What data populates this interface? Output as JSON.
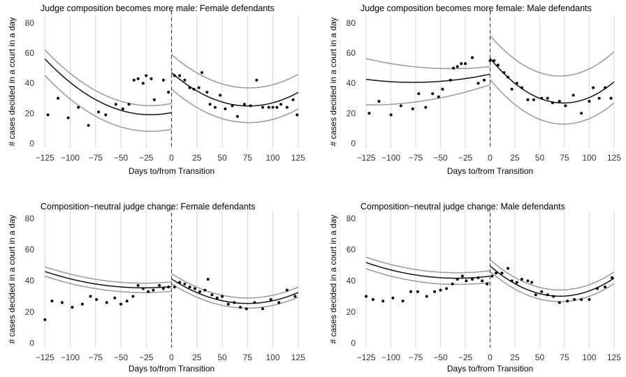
{
  "chart_data": [
    {
      "type": "scatter",
      "title": "Judge composition becomes more male: Female defendants",
      "xlabel": "Days to/from Transition",
      "ylabel": "# cases decided in a court in a day",
      "xlim": [
        -130,
        130
      ],
      "ylim": [
        -3,
        85
      ],
      "xticks": [
        -125,
        -100,
        -75,
        -50,
        -25,
        0,
        25,
        50,
        75,
        100,
        125
      ],
      "yticks": [
        0,
        20,
        40,
        60,
        80
      ],
      "grid": "vertical",
      "cutoff": 0,
      "points": [
        [
          -122,
          19
        ],
        [
          -112,
          30
        ],
        [
          -102,
          17
        ],
        [
          -92,
          24
        ],
        [
          -82,
          12
        ],
        [
          -72,
          21
        ],
        [
          -65,
          19
        ],
        [
          -55,
          26
        ],
        [
          -48,
          23
        ],
        [
          -42,
          26
        ],
        [
          -37,
          42
        ],
        [
          -33,
          43
        ],
        [
          -28,
          40
        ],
        [
          -25,
          45
        ],
        [
          -20,
          43
        ],
        [
          -17,
          29
        ],
        [
          -8,
          42
        ],
        [
          -3,
          34
        ],
        [
          3,
          45
        ],
        [
          8,
          45
        ],
        [
          13,
          42
        ],
        [
          18,
          37
        ],
        [
          22,
          36
        ],
        [
          27,
          37
        ],
        [
          30,
          47
        ],
        [
          35,
          34
        ],
        [
          38,
          26
        ],
        [
          43,
          24
        ],
        [
          48,
          32
        ],
        [
          53,
          23
        ],
        [
          60,
          25
        ],
        [
          65,
          18
        ],
        [
          72,
          26
        ],
        [
          78,
          25
        ],
        [
          84,
          42
        ],
        [
          90,
          24
        ],
        [
          96,
          24
        ],
        [
          100,
          24
        ],
        [
          104,
          24
        ],
        [
          108,
          26
        ],
        [
          114,
          24
        ],
        [
          120,
          29
        ],
        [
          124,
          19
        ]
      ],
      "fit": {
        "left": [
          20.5,
          0.14,
          0.0034
        ],
        "right": [
          47,
          -0.58,
          0.0038
        ]
      },
      "band": {
        "left_lower": [
          -11,
          0
        ],
        "left_upper": [
          6,
          0
        ],
        "right_lower": [
          -11,
          0
        ],
        "right_upper": [
          12,
          0
        ]
      }
    },
    {
      "type": "scatter",
      "title": "Judge composition becomes more female: Male defendants",
      "xlabel": "Days to/from Transition",
      "ylabel": "# cases decided in a court in a day",
      "xlim": [
        -130,
        130
      ],
      "ylim": [
        -3,
        85
      ],
      "xticks": [
        -125,
        -100,
        -75,
        -50,
        -25,
        0,
        25,
        50,
        75,
        100,
        125
      ],
      "yticks": [
        0,
        20,
        40,
        60,
        80
      ],
      "grid": "vertical",
      "cutoff": 0,
      "points": [
        [
          -122,
          20
        ],
        [
          -112,
          28
        ],
        [
          -100,
          19
        ],
        [
          -90,
          25
        ],
        [
          -78,
          23
        ],
        [
          -72,
          33
        ],
        [
          -65,
          24
        ],
        [
          -58,
          33
        ],
        [
          -52,
          31
        ],
        [
          -48,
          36
        ],
        [
          -40,
          42
        ],
        [
          -37,
          50
        ],
        [
          -33,
          51
        ],
        [
          -29,
          53
        ],
        [
          -25,
          53
        ],
        [
          -18,
          57
        ],
        [
          -12,
          40
        ],
        [
          -6,
          42
        ],
        [
          0,
          55
        ],
        [
          4,
          55
        ],
        [
          8,
          52
        ],
        [
          14,
          47
        ],
        [
          18,
          44
        ],
        [
          22,
          36
        ],
        [
          27,
          40
        ],
        [
          32,
          37
        ],
        [
          38,
          29
        ],
        [
          44,
          29
        ],
        [
          52,
          30
        ],
        [
          58,
          30
        ],
        [
          63,
          27
        ],
        [
          70,
          28
        ],
        [
          76,
          25
        ],
        [
          84,
          32
        ],
        [
          92,
          20
        ],
        [
          100,
          28
        ],
        [
          104,
          37
        ],
        [
          110,
          30
        ],
        [
          116,
          37
        ],
        [
          122,
          30
        ]
      ],
      "fit": {
        "left": [
          46,
          0.14,
          0.0009
        ],
        "right": [
          56.5,
          -0.8,
          0.0054
        ]
      },
      "band": {
        "left_lower": [
          -7,
          0.08
        ],
        "left_upper": [
          5,
          -0.07
        ],
        "right_lower": [
          -14,
          0
        ],
        "right_upper": [
          15,
          0.04
        ]
      }
    },
    {
      "type": "scatter",
      "title": "Composition−neutral judge change: Female defendants",
      "xlabel": "Days to/from Transition",
      "ylabel": "# cases decided in a court in a day",
      "xlim": [
        -130,
        130
      ],
      "ylim": [
        -3,
        85
      ],
      "xticks": [
        -125,
        -100,
        -75,
        -50,
        -25,
        0,
        25,
        50,
        75,
        100,
        125
      ],
      "yticks": [
        0,
        20,
        40,
        60,
        80
      ],
      "grid": "vertical",
      "cutoff": 0,
      "points": [
        [
          -125,
          15
        ],
        [
          -118,
          27
        ],
        [
          -108,
          26
        ],
        [
          -98,
          23
        ],
        [
          -88,
          25
        ],
        [
          -80,
          30
        ],
        [
          -74,
          28
        ],
        [
          -64,
          26
        ],
        [
          -56,
          29
        ],
        [
          -50,
          25
        ],
        [
          -44,
          27
        ],
        [
          -38,
          30
        ],
        [
          -33,
          37
        ],
        [
          -28,
          35
        ],
        [
          -23,
          33
        ],
        [
          -18,
          34
        ],
        [
          -12,
          37
        ],
        [
          -8,
          35
        ],
        [
          -3,
          36
        ],
        [
          3,
          36
        ],
        [
          8,
          39
        ],
        [
          13,
          38
        ],
        [
          18,
          36
        ],
        [
          23,
          35
        ],
        [
          28,
          33
        ],
        [
          33,
          34
        ],
        [
          36,
          41
        ],
        [
          40,
          31
        ],
        [
          45,
          29
        ],
        [
          50,
          30
        ],
        [
          56,
          25
        ],
        [
          62,
          26
        ],
        [
          68,
          23
        ],
        [
          74,
          22
        ],
        [
          82,
          26
        ],
        [
          90,
          22
        ],
        [
          98,
          28
        ],
        [
          106,
          26
        ],
        [
          114,
          34
        ],
        [
          122,
          30
        ]
      ],
      "fit": {
        "left": [
          36.3,
          0.06,
          0.0011
        ],
        "right": [
          41.2,
          -0.42,
          0.0028
        ]
      },
      "band": {
        "left_lower": [
          -3,
          0
        ],
        "left_upper": [
          3,
          0
        ],
        "right_lower": [
          -3,
          0
        ],
        "right_upper": [
          3.5,
          0
        ]
      }
    },
    {
      "type": "scatter",
      "title": "Composition−neutral judge change: Male defendants",
      "xlabel": "Days to/from Transition",
      "ylabel": "# cases decided in a court in a day",
      "xlim": [
        -130,
        130
      ],
      "ylim": [
        -3,
        85
      ],
      "xticks": [
        -125,
        -100,
        -75,
        -50,
        -25,
        0,
        25,
        50,
        75,
        100,
        125
      ],
      "yticks": [
        0,
        20,
        40,
        60,
        80
      ],
      "grid": "vertical",
      "cutoff": 0,
      "points": [
        [
          -125,
          30
        ],
        [
          -118,
          28
        ],
        [
          -108,
          27
        ],
        [
          -98,
          29
        ],
        [
          -88,
          27
        ],
        [
          -80,
          33
        ],
        [
          -73,
          33
        ],
        [
          -64,
          30
        ],
        [
          -56,
          33
        ],
        [
          -50,
          34
        ],
        [
          -44,
          35
        ],
        [
          -38,
          38
        ],
        [
          -33,
          41
        ],
        [
          -28,
          43
        ],
        [
          -24,
          40
        ],
        [
          -18,
          41
        ],
        [
          -12,
          42
        ],
        [
          -8,
          40
        ],
        [
          -3,
          38
        ],
        [
          2,
          43
        ],
        [
          6,
          45
        ],
        [
          12,
          45
        ],
        [
          18,
          48
        ],
        [
          22,
          40
        ],
        [
          27,
          39
        ],
        [
          32,
          41
        ],
        [
          38,
          40
        ],
        [
          42,
          39
        ],
        [
          46,
          31
        ],
        [
          52,
          33
        ],
        [
          58,
          31
        ],
        [
          64,
          30
        ],
        [
          70,
          26
        ],
        [
          78,
          27
        ],
        [
          85,
          28
        ],
        [
          92,
          28
        ],
        [
          100,
          28
        ],
        [
          108,
          35
        ],
        [
          116,
          36
        ],
        [
          123,
          42
        ]
      ],
      "fit": {
        "left": [
          43,
          0.08,
          0.0012
        ],
        "right": [
          49.5,
          -0.55,
          0.0039
        ]
      },
      "band": {
        "left_lower": [
          -4,
          0
        ],
        "left_upper": [
          3.5,
          0
        ],
        "right_lower": [
          -3.5,
          0
        ],
        "right_upper": [
          4,
          0
        ]
      }
    }
  ]
}
